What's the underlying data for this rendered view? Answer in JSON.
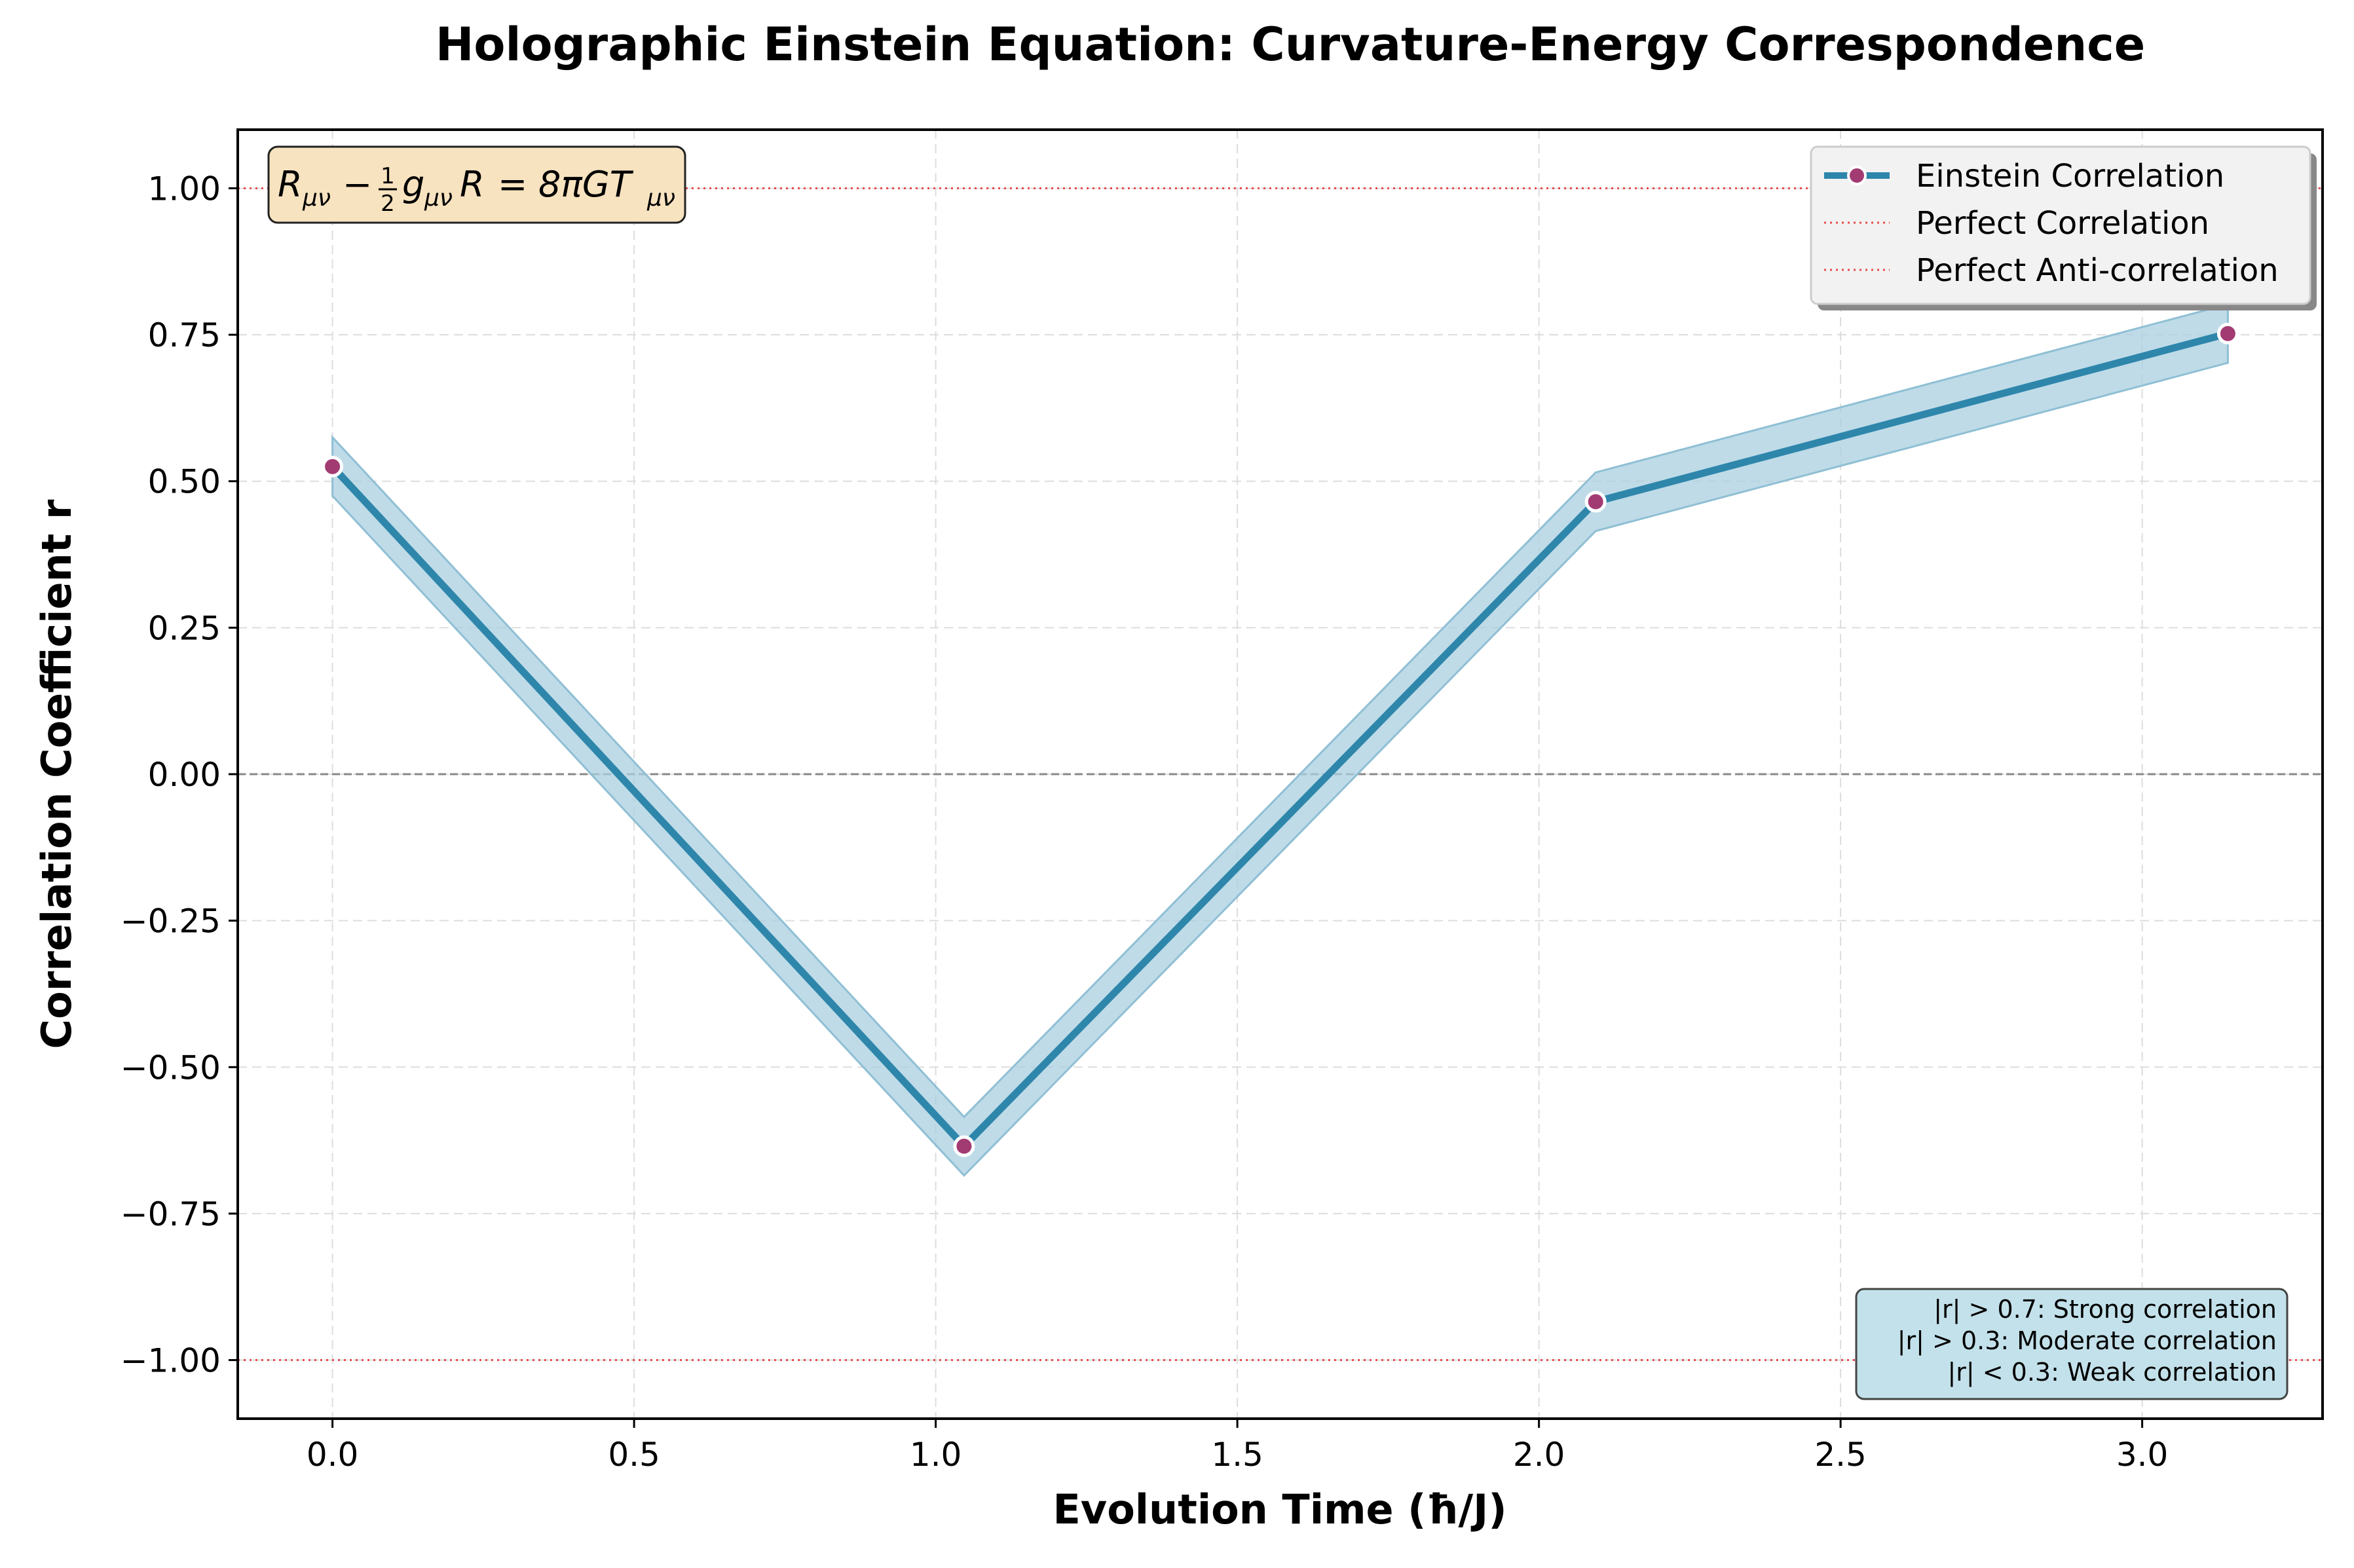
{
  "chart_data": {
    "type": "line",
    "title": "Holographic Einstein Equation: Curvature-Energy Correspondence",
    "xlabel": "Evolution Time (ħ/J)",
    "ylabel": "Correlation Coefficient r",
    "xlim": [
      -0.157,
      3.299
    ],
    "ylim": [
      -1.1,
      1.1
    ],
    "xticks": [
      0.0,
      0.5,
      1.0,
      1.5,
      2.0,
      2.5,
      3.0
    ],
    "xtick_labels": [
      "0.0",
      "0.5",
      "1.0",
      "1.5",
      "2.0",
      "2.5",
      "3.0"
    ],
    "yticks": [
      1.0,
      0.75,
      0.5,
      0.25,
      0.0,
      -0.25,
      -0.5,
      -0.75,
      -1.0
    ],
    "ytick_labels": [
      "1.00",
      "0.75",
      "0.50",
      "0.25",
      "0.00",
      "−0.25",
      "−0.50",
      "−0.75",
      "−1.00"
    ],
    "grid": true,
    "legend_position": "upper right",
    "series": [
      {
        "name": "Einstein Correlation",
        "x": [
          0.0,
          1.047,
          2.094,
          3.142
        ],
        "values": [
          0.525,
          -0.635,
          0.465,
          0.752
        ],
        "band": 0.05,
        "line_color": "#2e86ab",
        "marker_color": "#a23b72",
        "band_color": "#a9cfe0"
      }
    ],
    "reference_lines": [
      {
        "name": "Perfect Correlation",
        "y": 1.0,
        "color": "#e84c4c",
        "style": "dotted"
      },
      {
        "name": "Perfect Anti-correlation",
        "y": -1.0,
        "color": "#e84c4c",
        "style": "dotted"
      },
      {
        "y": 0.0,
        "color": "#888888",
        "style": "dashed"
      }
    ],
    "equation_box": {
      "text": "R_{μν} − ½ g_{μν} R = 8πG T_{μν}",
      "parts": {
        "r": "R",
        "mn": "μν",
        "minus": "−",
        "half_num": "1",
        "half_den": "2",
        "g": "g",
        "eq": "=",
        "pi": "8πGT"
      },
      "background": "#f5deb3"
    },
    "info_box": {
      "lines": [
        "|r| > 0.7: Strong correlation",
        "|r| > 0.3: Moderate correlation",
        "|r| < 0.3: Weak correlation"
      ],
      "background": "#add8e6"
    }
  }
}
